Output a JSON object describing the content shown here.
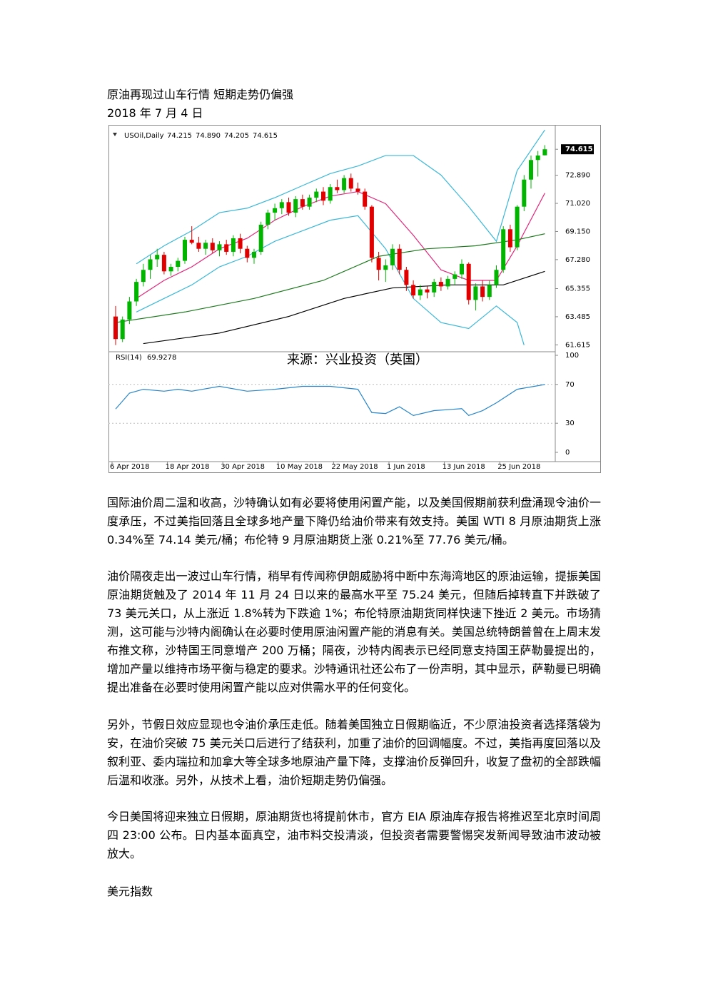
{
  "document": {
    "title": "原油再现过山车行情 短期走势仍偏强",
    "date": "2018 年 7 月 4 日",
    "paragraphs": [
      "国际油价周二温和收高，沙特确认如有必要将使用闲置产能，以及美国假期前获利盘涌现令油价一度承压，不过美指回落且全球多地产量下降仍给油价带来有效支持。美国 WTI 8 月原油期货上涨 0.34%至 74.14 美元/桶；布伦特 9 月原油期货上涨 0.21%至 77.76 美元/桶。",
      "油价隔夜走出一波过山车行情，稍早有传闻称伊朗威胁将中断中东海湾地区的原油运输，提振美国原油期货触及了 2014 年 11 月 24 日以来的最高水平至 75.24 美元，但随后掉转直下并跌破了 73 美元关口，从上涨近 1.8%转为下跌逾 1%；布伦特原油期货同样快速下挫近 2 美元。市场猜测，这可能与沙特内阁确认在必要时使用原油闲置产能的消息有关。美国总统特朗普曾在上周末发布推文称，沙特国王同意增产 200 万桶；隔夜，沙特内阁表示已经同意支持国王萨勒曼提出的，增加产量以维持市场平衡与稳定的要求。沙特通讯社还公布了一份声明，其中显示，萨勒曼已明确提出准备在必要时使用闲置产能以应对供需水平的任何变化。",
      "另外，节假日效应显现也令油价承压走低。随着美国独立日假期临近，不少原油投资者选择落袋为安，在油价突破 75 美元关口后进行了结获利，加重了油价的回调幅度。不过，美指再度回落以及叙利亚、委内瑞拉和加拿大等全球多地原油产量下降，支撑油价反弹回升，收复了盘初的全部跌幅后温和收涨。另外，从技术上看，油价短期走势仍偏强。",
      "今日美国将迎来独立日假期，原油期货也将提前休市，官方 EIA 原油库存报告将推迟至北京时间周四 23:00 公布。日内基本面真空，油市料交投清淡，但投资者需要警惕突发新闻导致油市波动被放大。"
    ],
    "section": "美元指数"
  },
  "chart_data": {
    "type": "candlestick",
    "title": "USOil,Daily",
    "annotation": "来源：兴业投资（英国）",
    "up_color": "#00b400",
    "down_color": "#e00000",
    "categories": [
      "6 Apr 2018",
      null,
      null,
      null,
      null,
      null,
      null,
      null,
      "18 Apr 2018",
      null,
      null,
      null,
      null,
      null,
      null,
      null,
      "30 Apr 2018",
      null,
      null,
      null,
      null,
      null,
      null,
      null,
      "10 May 2018",
      null,
      null,
      null,
      null,
      null,
      null,
      null,
      "22 May 2018",
      null,
      null,
      null,
      null,
      null,
      null,
      null,
      "1 Jun 2018",
      null,
      null,
      null,
      null,
      null,
      null,
      null,
      "13 Jun 2018",
      null,
      null,
      null,
      null,
      null,
      null,
      null,
      "25 Jun 2018",
      null,
      null,
      null,
      null,
      null,
      null
    ],
    "candles": [
      {
        "open": 63.5,
        "high": 64.2,
        "low": 61.6,
        "close": 62.0
      },
      {
        "open": 62.0,
        "high": 63.5,
        "low": 61.8,
        "close": 63.3
      },
      {
        "open": 63.3,
        "high": 64.8,
        "low": 63.0,
        "close": 64.5
      },
      {
        "open": 64.5,
        "high": 66.0,
        "low": 64.2,
        "close": 65.8
      },
      {
        "open": 65.8,
        "high": 67.0,
        "low": 65.5,
        "close": 66.6
      },
      {
        "open": 66.6,
        "high": 67.6,
        "low": 66.0,
        "close": 67.3
      },
      {
        "open": 67.3,
        "high": 68.0,
        "low": 66.8,
        "close": 67.6
      },
      {
        "open": 67.6,
        "high": 67.8,
        "low": 66.3,
        "close": 66.5
      },
      {
        "open": 66.5,
        "high": 67.0,
        "low": 66.2,
        "close": 66.8
      },
      {
        "open": 66.8,
        "high": 67.4,
        "low": 66.5,
        "close": 67.2
      },
      {
        "open": 67.2,
        "high": 68.8,
        "low": 67.0,
        "close": 68.6
      },
      {
        "open": 68.6,
        "high": 69.5,
        "low": 68.3,
        "close": 68.4
      },
      {
        "open": 68.4,
        "high": 68.8,
        "low": 67.8,
        "close": 68.0
      },
      {
        "open": 68.0,
        "high": 68.6,
        "low": 67.6,
        "close": 68.4
      },
      {
        "open": 68.4,
        "high": 68.7,
        "low": 67.7,
        "close": 67.9
      },
      {
        "open": 67.9,
        "high": 68.5,
        "low": 67.5,
        "close": 68.3
      },
      {
        "open": 68.3,
        "high": 68.6,
        "low": 67.6,
        "close": 67.8
      },
      {
        "open": 67.8,
        "high": 68.9,
        "low": 67.5,
        "close": 68.7
      },
      {
        "open": 68.7,
        "high": 69.0,
        "low": 67.7,
        "close": 68.0
      },
      {
        "open": 68.0,
        "high": 68.2,
        "low": 67.1,
        "close": 67.4
      },
      {
        "open": 67.4,
        "high": 68.0,
        "low": 67.0,
        "close": 67.8
      },
      {
        "open": 67.8,
        "high": 69.8,
        "low": 67.6,
        "close": 69.6
      },
      {
        "open": 69.6,
        "high": 70.6,
        "low": 69.3,
        "close": 70.4
      },
      {
        "open": 70.4,
        "high": 71.0,
        "low": 69.9,
        "close": 70.7
      },
      {
        "open": 70.7,
        "high": 71.3,
        "low": 70.3,
        "close": 71.1
      },
      {
        "open": 71.1,
        "high": 71.4,
        "low": 70.2,
        "close": 70.4
      },
      {
        "open": 70.4,
        "high": 71.5,
        "low": 70.1,
        "close": 71.3
      },
      {
        "open": 71.3,
        "high": 71.6,
        "low": 70.6,
        "close": 70.8
      },
      {
        "open": 70.8,
        "high": 71.6,
        "low": 70.6,
        "close": 71.4
      },
      {
        "open": 71.4,
        "high": 72.0,
        "low": 71.1,
        "close": 71.8
      },
      {
        "open": 71.8,
        "high": 72.1,
        "low": 70.9,
        "close": 71.2
      },
      {
        "open": 71.2,
        "high": 72.3,
        "low": 71.0,
        "close": 72.1
      },
      {
        "open": 72.1,
        "high": 72.6,
        "low": 71.7,
        "close": 71.9
      },
      {
        "open": 71.9,
        "high": 72.9,
        "low": 71.7,
        "close": 72.7
      },
      {
        "open": 72.7,
        "high": 73.0,
        "low": 71.8,
        "close": 72.0
      },
      {
        "open": 72.0,
        "high": 72.4,
        "low": 71.6,
        "close": 71.8
      },
      {
        "open": 71.8,
        "high": 72.0,
        "low": 70.6,
        "close": 70.8
      },
      {
        "open": 70.8,
        "high": 70.9,
        "low": 67.1,
        "close": 67.4
      },
      {
        "open": 67.4,
        "high": 67.8,
        "low": 65.9,
        "close": 66.6
      },
      {
        "open": 66.6,
        "high": 67.3,
        "low": 65.8,
        "close": 66.9
      },
      {
        "open": 66.9,
        "high": 68.3,
        "low": 66.6,
        "close": 68.0
      },
      {
        "open": 68.0,
        "high": 68.3,
        "low": 66.3,
        "close": 66.6
      },
      {
        "open": 66.6,
        "high": 66.8,
        "low": 65.2,
        "close": 65.6
      },
      {
        "open": 65.6,
        "high": 65.9,
        "low": 64.7,
        "close": 64.9
      },
      {
        "open": 64.9,
        "high": 65.6,
        "low": 64.6,
        "close": 65.3
      },
      {
        "open": 65.3,
        "high": 65.5,
        "low": 64.7,
        "close": 65.1
      },
      {
        "open": 65.1,
        "high": 66.0,
        "low": 64.8,
        "close": 65.8
      },
      {
        "open": 65.8,
        "high": 66.1,
        "low": 65.2,
        "close": 65.5
      },
      {
        "open": 65.5,
        "high": 66.2,
        "low": 65.3,
        "close": 66.0
      },
      {
        "open": 66.0,
        "high": 66.5,
        "low": 65.6,
        "close": 66.3
      },
      {
        "open": 66.3,
        "high": 67.3,
        "low": 66.0,
        "close": 67.0
      },
      {
        "open": 67.0,
        "high": 67.1,
        "low": 64.3,
        "close": 64.6
      },
      {
        "open": 64.6,
        "high": 65.7,
        "low": 63.9,
        "close": 65.5
      },
      {
        "open": 65.5,
        "high": 65.9,
        "low": 64.5,
        "close": 64.8
      },
      {
        "open": 64.8,
        "high": 65.9,
        "low": 64.6,
        "close": 65.6
      },
      {
        "open": 65.6,
        "high": 66.9,
        "low": 65.4,
        "close": 66.6
      },
      {
        "open": 66.6,
        "high": 69.5,
        "low": 66.4,
        "close": 69.3
      },
      {
        "open": 69.3,
        "high": 69.6,
        "low": 67.8,
        "close": 68.1
      },
      {
        "open": 68.1,
        "high": 70.9,
        "low": 67.9,
        "close": 70.8
      },
      {
        "open": 70.8,
        "high": 72.9,
        "low": 70.5,
        "close": 72.6
      },
      {
        "open": 72.6,
        "high": 74.2,
        "low": 72.0,
        "close": 73.9
      },
      {
        "open": 73.9,
        "high": 74.5,
        "low": 72.8,
        "close": 74.2
      },
      {
        "open": 74.215,
        "high": 74.89,
        "low": 74.205,
        "close": 74.615
      }
    ],
    "last_bar_labels": [
      "74.215",
      "74.890",
      "74.205",
      "74.615"
    ],
    "lines": [
      {
        "color": "#3cb8d8",
        "x": [
          3,
          7,
          11,
          15,
          19,
          23,
          27,
          31,
          35,
          39,
          43,
          47,
          51,
          55,
          58,
          62
        ],
        "values": [
          67.0,
          68.2,
          69.2,
          70.4,
          70.7,
          71.4,
          72.2,
          73.0,
          73.5,
          74.2,
          74.2,
          72.9,
          70.8,
          68.5,
          73.2,
          75.9
        ]
      },
      {
        "color": "#3cb8d8",
        "x": [
          3,
          7,
          11,
          15,
          19,
          23,
          27,
          31,
          35,
          39,
          43,
          47,
          51,
          55,
          58,
          59
        ],
        "values": [
          63.8,
          64.7,
          65.6,
          66.8,
          67.5,
          68.5,
          69.2,
          69.9,
          70.2,
          68.0,
          64.7,
          63.1,
          62.7,
          64.2,
          63.1,
          61.6
        ]
      },
      {
        "color": "#e0287a",
        "x": [
          3,
          7,
          11,
          15,
          19,
          23,
          27,
          31,
          35,
          39,
          43,
          47,
          51,
          55,
          58,
          62
        ],
        "values": [
          64.7,
          65.9,
          66.8,
          68.0,
          68.7,
          69.9,
          70.8,
          71.5,
          71.8,
          71.0,
          68.9,
          66.6,
          65.9,
          65.9,
          68.2,
          71.7
        ]
      },
      {
        "color": "#1e7a1e",
        "x": [
          0,
          10,
          20,
          30,
          38,
          45,
          52,
          58,
          62
        ],
        "values": [
          63.1,
          63.8,
          64.7,
          65.9,
          67.5,
          68.0,
          68.2,
          68.6,
          69.0
        ]
      },
      {
        "color": "#000000",
        "x": [
          4,
          15,
          25,
          33,
          40,
          48,
          56,
          62
        ],
        "values": [
          61.7,
          62.4,
          63.5,
          64.7,
          65.4,
          65.6,
          65.6,
          66.5
        ]
      }
    ],
    "ylim": [
      61.3,
      76.0
    ],
    "yticks": [
      74.615,
      {
        "value": 72.89,
        "label": "72.890"
      },
      {
        "value": 71.02,
        "label": "71.020"
      },
      {
        "value": 69.15,
        "label": "69.150"
      },
      {
        "value": 67.28,
        "label": "67.280"
      },
      65.355,
      63.485,
      61.615
    ],
    "rsi": {
      "name": "RSI(14)",
      "color": "#2a86c8",
      "x": [
        0,
        2,
        4,
        7,
        9,
        11,
        15,
        19,
        23,
        27,
        31,
        35,
        37,
        39,
        41,
        43,
        46,
        50,
        51,
        53,
        55,
        58,
        62
      ],
      "values": [
        44.7,
        61,
        65,
        63,
        65,
        63,
        68,
        63,
        65,
        68,
        68,
        65,
        41,
        40,
        47,
        38,
        43,
        45,
        38,
        43,
        51,
        65,
        69.9278
      ],
      "ylim": [
        0,
        100
      ],
      "yticks": [
        100,
        70,
        30,
        0
      ]
    }
  }
}
